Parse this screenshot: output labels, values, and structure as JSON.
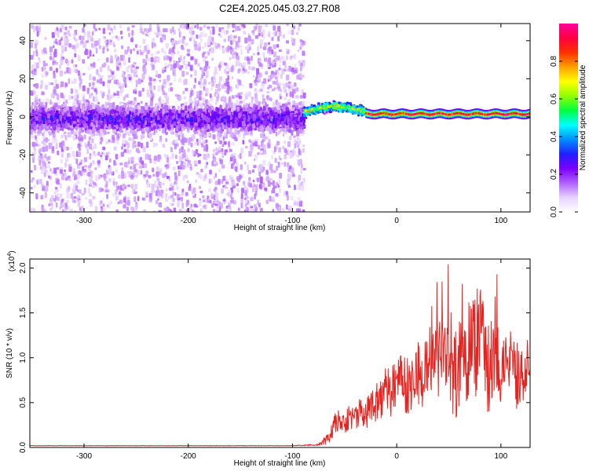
{
  "title": "C2E4.2025.045.03.27.R08",
  "chart_data": [
    {
      "type": "heatmap",
      "name": "spectrogram",
      "xlabel": "Height of straight line (km)",
      "ylabel": "Frequency (Hz)",
      "xlim": [
        -352,
        128
      ],
      "ylim": [
        -50,
        49
      ],
      "xticks": [
        -300,
        -200,
        -100,
        0,
        100
      ],
      "xtick_labels": [
        "-300",
        "-200",
        "-100",
        "0",
        "100"
      ],
      "yticks": [
        -40,
        -20,
        0,
        20,
        40
      ],
      "ytick_labels": [
        "-40",
        "-20",
        "0",
        "20",
        "40"
      ],
      "colorbar": {
        "label": "Normalized spectral amplitude",
        "range": [
          0,
          1
        ],
        "ticks": [
          0.0,
          0.2,
          0.4,
          0.6,
          0.8
        ],
        "tick_labels": [
          "0.0",
          "0.2",
          "0.4",
          "0.6",
          "0.8"
        ],
        "colormap": [
          "#ffffff",
          "#e6d2ff",
          "#b060ff",
          "#7a00ff",
          "#2020ff",
          "#0090ff",
          "#00ffff",
          "#00ff40",
          "#90ff00",
          "#ffff00",
          "#ffa000",
          "#ff3000",
          "#ff0040",
          "#ff00a0"
        ]
      },
      "regions": [
        {
          "x_range": [
            -352,
            -90
          ],
          "description": "noise",
          "band_center_hz": 0,
          "band_halfwidth_hz": 8,
          "peak_amplitude": 0.3,
          "scatter_range_hz": [
            -50,
            49
          ]
        },
        {
          "x_range": [
            -90,
            -30
          ],
          "description": "transition",
          "band_center_hz": [
            3,
            6
          ],
          "band_halfwidth_hz": 3,
          "peak_amplitude": 0.75
        },
        {
          "x_range": [
            -30,
            128
          ],
          "description": "tone",
          "band_center_hz": 1.5,
          "band_halfwidth_hz": 2.5,
          "peak_amplitude": 1.0
        }
      ]
    },
    {
      "type": "line",
      "name": "snr",
      "xlabel": "Height of straight line (km)",
      "ylabel": "SNR (10 * v/v)",
      "y_multiplier": "(x10",
      "y_multiplier_exp": "4",
      "y_multiplier_close": ")",
      "xlim": [
        -352,
        128
      ],
      "ylim": [
        0,
        2.1
      ],
      "xticks": [
        -300,
        -200,
        -100,
        0,
        100
      ],
      "xtick_labels": [
        "-300",
        "-200",
        "-100",
        "0",
        "100"
      ],
      "yticks": [
        0.0,
        0.5,
        1.0,
        1.5,
        2.0
      ],
      "ytick_labels": [
        "0.0",
        "0.5",
        "1.0",
        "1.5",
        "2.0"
      ],
      "color": "#e8231f",
      "series": [
        {
          "name": "SNR",
          "x": [
            -352,
            -300,
            -200,
            -100,
            -75,
            -65,
            -60,
            -55,
            -50,
            -45,
            -40,
            -35,
            -30,
            -25,
            -20,
            -15,
            -10,
            -5,
            0,
            5,
            10,
            15,
            20,
            25,
            30,
            35,
            40,
            45,
            50,
            55,
            60,
            65,
            70,
            75,
            80,
            85,
            90,
            95,
            100,
            105,
            110,
            115,
            120,
            125,
            128
          ],
          "y": [
            0.02,
            0.02,
            0.02,
            0.02,
            0.03,
            0.1,
            0.25,
            0.3,
            0.22,
            0.35,
            0.3,
            0.42,
            0.38,
            0.45,
            0.5,
            0.55,
            0.62,
            0.6,
            0.68,
            0.72,
            0.7,
            0.75,
            0.82,
            0.85,
            0.88,
            0.92,
            1.05,
            0.95,
            1.0,
            0.9,
            0.8,
            1.05,
            1.15,
            1.1,
            1.25,
            1.0,
            0.9,
            0.95,
            0.85,
            0.95,
            0.9,
            0.8,
            0.9,
            0.85,
            0.85
          ],
          "amplitude_envelope": [
            0.002,
            0.002,
            0.002,
            0.002,
            0.01,
            0.08,
            0.12,
            0.14,
            0.14,
            0.15,
            0.15,
            0.16,
            0.18,
            0.2,
            0.22,
            0.25,
            0.28,
            0.3,
            0.3,
            0.32,
            0.34,
            0.36,
            0.38,
            0.4,
            0.45,
            0.48,
            0.5,
            0.52,
            0.55,
            0.58,
            0.6,
            0.6,
            0.6,
            0.62,
            0.6,
            0.58,
            0.55,
            0.5,
            0.45,
            0.45,
            0.42,
            0.4,
            0.38,
            0.35,
            0.35
          ]
        }
      ]
    }
  ]
}
